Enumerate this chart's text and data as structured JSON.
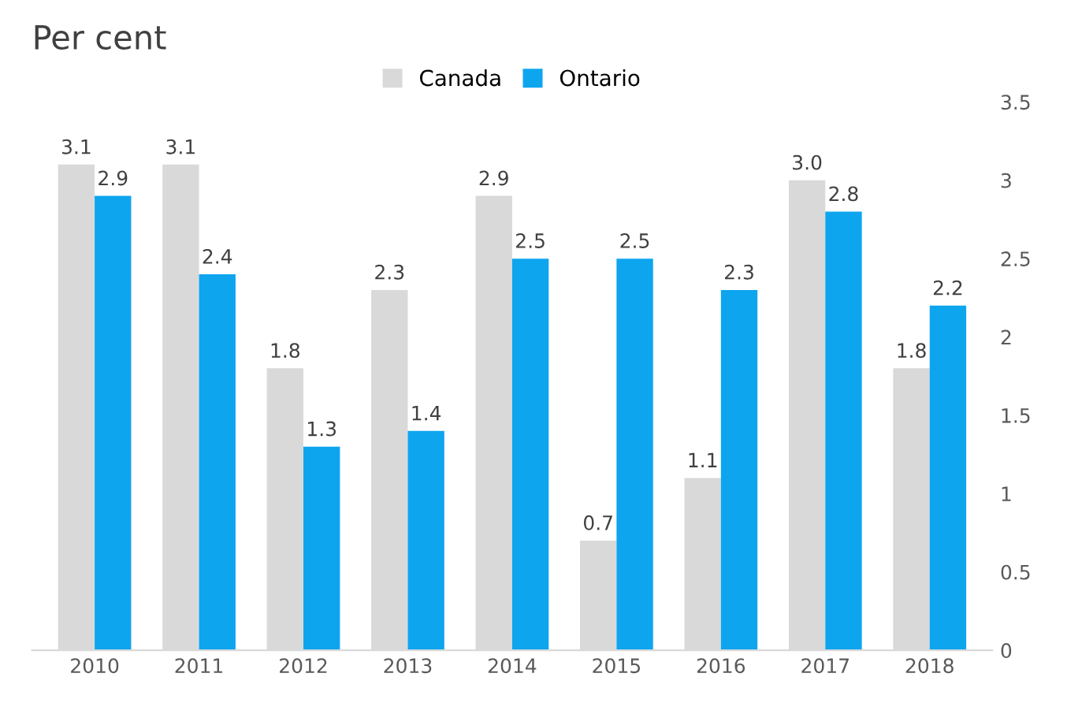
{
  "chart_data": {
    "type": "bar",
    "ylabel": "Per cent",
    "categories": [
      "2010",
      "2011",
      "2012",
      "2013",
      "2014",
      "2015",
      "2016",
      "2017",
      "2018"
    ],
    "series": [
      {
        "name": "Canada",
        "color": "#d9d9d9",
        "values": [
          3.1,
          3.1,
          1.8,
          2.3,
          2.9,
          0.7,
          1.1,
          3.0,
          1.8
        ],
        "value_labels": [
          "3.1",
          "3.1",
          "1.8",
          "2.3",
          "2.9",
          "0.7",
          "1.1",
          "3.0",
          "1.8"
        ]
      },
      {
        "name": "Ontario",
        "color": "#0ea5ef",
        "values": [
          2.9,
          2.4,
          1.3,
          1.4,
          2.5,
          2.5,
          2.3,
          2.8,
          2.2
        ],
        "value_labels": [
          "2.9",
          "2.4",
          "1.3",
          "1.4",
          "2.5",
          "2.5",
          "2.3",
          "2.8",
          "2.2"
        ]
      }
    ],
    "ylim": [
      0,
      3.5
    ],
    "yticks": [
      0,
      {
        "value": 0.5,
        "label": "0.5"
      },
      1,
      {
        "value": 1.5,
        "label": "1.5"
      },
      2,
      {
        "value": 2.5,
        "label": "2.5"
      },
      3,
      {
        "value": 3.5,
        "label": "3.5"
      }
    ],
    "grid": false,
    "legend": "top"
  }
}
